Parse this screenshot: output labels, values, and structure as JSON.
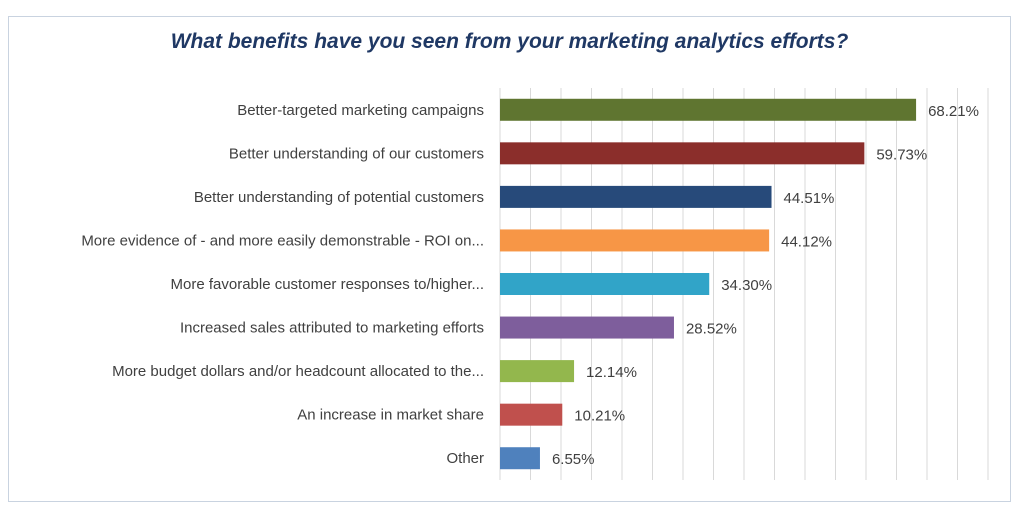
{
  "chart_data": {
    "type": "bar",
    "orientation": "horizontal",
    "title": "What benefits have you seen from your marketing analytics efforts?",
    "xlabel": "",
    "ylabel": "",
    "xlim": [
      0,
      80
    ],
    "grid": true,
    "legend": "none",
    "categories": [
      "Better-targeted marketing campaigns",
      "Better understanding of our customers",
      "Better understanding of potential customers",
      "More evidence of - and more easily demonstrable - ROI on...",
      "More favorable customer responses to/higher...",
      "Increased sales attributed to marketing efforts",
      "More budget dollars and/or headcount allocated to the...",
      "An increase in market share",
      "Other"
    ],
    "values": [
      68.21,
      59.73,
      44.51,
      44.12,
      34.3,
      28.52,
      12.14,
      10.21,
      6.55
    ],
    "value_labels": [
      "68.21%",
      "59.73%",
      "44.51%",
      "44.12%",
      "34.30%",
      "28.52%",
      "12.14%",
      "10.21%",
      "6.55%"
    ],
    "colors": [
      "#5f7530",
      "#8b2e2b",
      "#274a7a",
      "#f79646",
      "#31a4c8",
      "#7e5e9c",
      "#93b74d",
      "#c0504d",
      "#4f81bd"
    ]
  }
}
